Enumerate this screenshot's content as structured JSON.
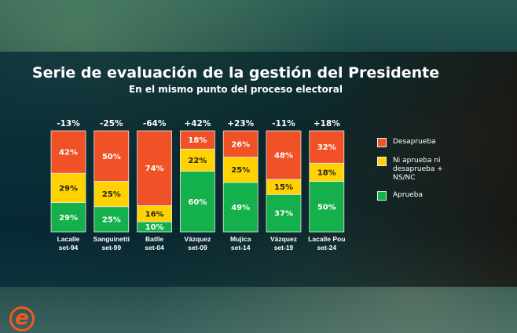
{
  "title": "Serie de evaluación de la gestión del Presidente",
  "subtitle": "En el mismo punto del proceso electoral",
  "colors": {
    "desaprueba": "#f05127",
    "ni": "#ffd200",
    "aprueba": "#13b04b"
  },
  "chart_data": {
    "type": "bar",
    "stacked": true,
    "categories": [
      [
        "Lacalle",
        "set-94"
      ],
      [
        "Sanguinetti",
        "set-99"
      ],
      [
        "Batlle",
        "set-04"
      ],
      [
        "Vázquez",
        "set-09"
      ],
      [
        "Mujica",
        "set-14"
      ],
      [
        "Vázquez",
        "set-19"
      ],
      [
        "Lacalle Pou",
        "set-24"
      ]
    ],
    "net_labels": [
      "-13%",
      "-25%",
      "-64%",
      "+42%",
      "+23%",
      "-11%",
      "+18%"
    ],
    "series": [
      {
        "name": "Aprueba",
        "values": [
          29,
          25,
          10,
          60,
          49,
          37,
          50
        ]
      },
      {
        "name": "Ni aprueba ni desaprueba + NS/NC",
        "values": [
          29,
          25,
          16,
          22,
          25,
          15,
          18
        ]
      },
      {
        "name": "Desaprueba",
        "values": [
          42,
          50,
          74,
          18,
          26,
          48,
          32
        ]
      }
    ],
    "ylim": [
      0,
      100
    ],
    "legend_position": "right",
    "grid": false
  },
  "logo_text": "e"
}
